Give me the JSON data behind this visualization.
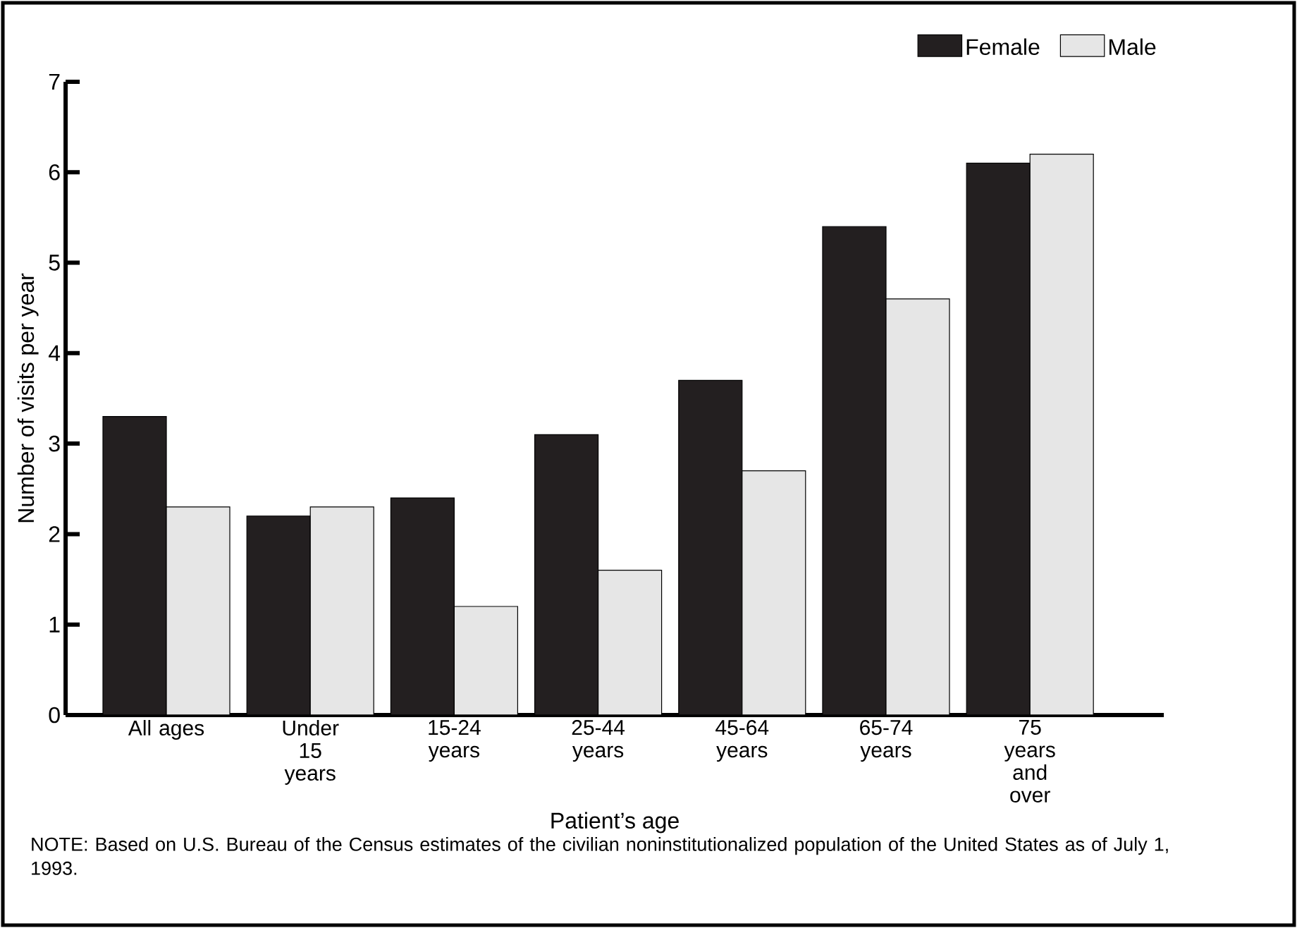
{
  "chart_data": {
    "type": "bar",
    "xlabel": "Patient’s age",
    "ylabel": "Number of visits per year",
    "categories": [
      "All ages",
      "Under 15 years",
      "15-24 years",
      "25-44 years",
      "45-64 years",
      "65-74 years",
      "75 years and over"
    ],
    "series": [
      {
        "name": "Female",
        "color": "#231f20",
        "values": [
          3.3,
          2.2,
          2.4,
          3.1,
          3.7,
          5.4,
          6.1
        ]
      },
      {
        "name": "Male",
        "color": "#e6e6e6",
        "values": [
          2.3,
          2.3,
          1.2,
          1.6,
          2.7,
          4.6,
          6.2
        ]
      }
    ],
    "ylim": [
      0,
      7
    ],
    "yticks": [
      0,
      1,
      2,
      3,
      4,
      5,
      6,
      7
    ],
    "legend": "top right",
    "annotations": [
      "NOTE: Based on U.S. Bureau of the Census estimates of the civilian noninstitutionalized population of the United States as of July 1, 1993."
    ]
  }
}
